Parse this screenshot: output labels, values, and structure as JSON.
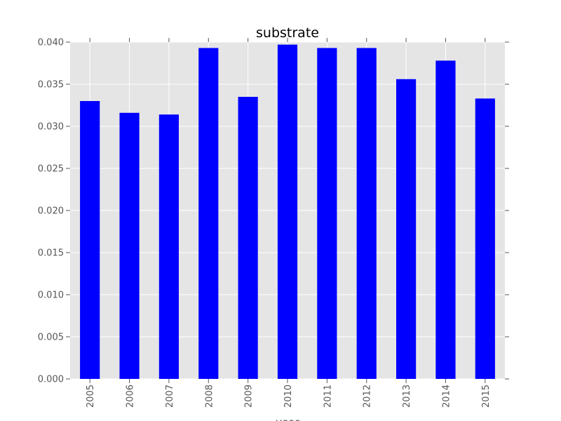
{
  "chart_data": {
    "type": "bar",
    "title": "substrate",
    "xlabel": "year",
    "ylabel": "",
    "categories": [
      "2005",
      "2006",
      "2007",
      "2008",
      "2009",
      "2010",
      "2011",
      "2012",
      "2013",
      "2014",
      "2015"
    ],
    "values": [
      0.033,
      0.0316,
      0.0314,
      0.0393,
      0.0335,
      0.0397,
      0.0393,
      0.0393,
      0.0356,
      0.0378,
      0.0333
    ],
    "ylim": [
      0,
      0.04
    ],
    "yticks": [
      "0.000",
      "0.005",
      "0.010",
      "0.015",
      "0.020",
      "0.025",
      "0.030",
      "0.035",
      "0.040"
    ],
    "grid": true,
    "legend": "none",
    "colors": {
      "bar": "#0000ff",
      "plot_background": "#e5e5e5",
      "grid": "#ffffff",
      "tick_text": "#555555"
    }
  }
}
